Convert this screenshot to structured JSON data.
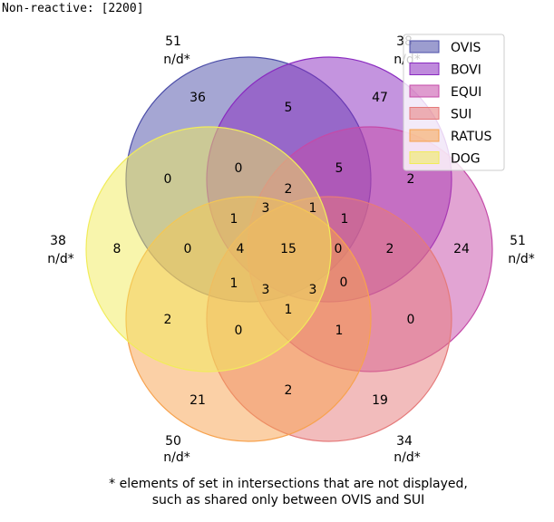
{
  "header": "Non-reactive: [2200]",
  "sets": [
    {
      "name": "OVIS",
      "fill": "#4b4da8",
      "stroke": "#4b4da8"
    },
    {
      "name": "BOVI",
      "fill": "#8a2ac0",
      "stroke": "#8a2ac0"
    },
    {
      "name": "EQUI",
      "fill": "#c54aa8",
      "stroke": "#c54aa8"
    },
    {
      "name": "SUI",
      "fill": "#e57a7a",
      "stroke": "#e57a7a"
    },
    {
      "name": "RATUS",
      "fill": "#f7a24e",
      "stroke": "#f7a24e"
    },
    {
      "name": "DOG",
      "fill": "#f1ec5a",
      "stroke": "#f1ec5a"
    }
  ],
  "region_counts": [
    "36",
    "5",
    "47",
    "0",
    "0",
    "5",
    "2",
    "2",
    "3",
    "1",
    "1",
    "8",
    "0",
    "4",
    "15",
    "0",
    "2",
    "24",
    "1",
    "3",
    "3",
    "0",
    "2",
    "0",
    "1",
    "0",
    "21",
    "2",
    "19"
  ],
  "set_totals": [
    {
      "total": "51",
      "note": "n/d*"
    },
    {
      "total": "38",
      "note": "n/d*"
    },
    {
      "total": "38",
      "note": "n/d*"
    },
    {
      "total": "51",
      "note": "n/d*"
    },
    {
      "total": "50",
      "note": "n/d*"
    },
    {
      "total": "34",
      "note": "n/d*"
    }
  ],
  "footnote": [
    "* elements of set in intersections that are not displayed,",
    "such as shared only between OVIS and SUI"
  ]
}
